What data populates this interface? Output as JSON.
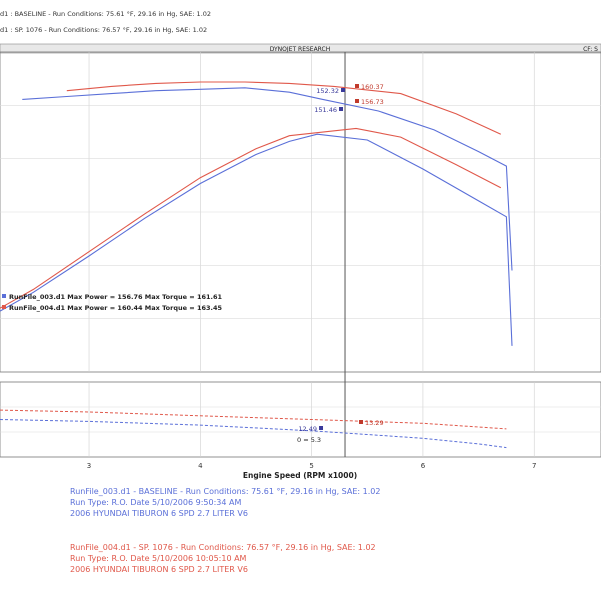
{
  "header": {
    "line1": "d1 : BASELINE  -  Run Conditions: 75.61 °F, 29.16 in Hg, SAE: 1.02",
    "line2": "d1 : SP. 1076  -  Run Conditions: 76.57 °F, 29.16 in Hg, SAE: 1.02",
    "title": "DYNOJET RESEARCH",
    "right": "CF: S"
  },
  "chart_data": {
    "type": "line",
    "xlabel": "Engine Speed (RPM x1000)",
    "x_ticks": [
      "3",
      "4",
      "5",
      "6",
      "7"
    ],
    "x_range": [
      2.2,
      7.6
    ],
    "top_range": [
      0,
      200
    ],
    "bottom_range": [
      0,
      40
    ],
    "series": [
      {
        "name": "RunFile_003.d1",
        "color": "#5a6fd8",
        "power": [
          [
            2.2,
            42
          ],
          [
            2.5,
            55
          ],
          [
            3.0,
            80
          ],
          [
            3.5,
            106
          ],
          [
            4.0,
            130
          ],
          [
            4.5,
            150
          ],
          [
            4.8,
            159
          ],
          [
            5.05,
            164
          ],
          [
            5.5,
            160
          ],
          [
            6.0,
            140
          ],
          [
            6.5,
            118
          ],
          [
            6.75,
            107
          ],
          [
            6.8,
            18
          ]
        ],
        "torque": [
          [
            2.4,
            188
          ],
          [
            2.8,
            190
          ],
          [
            3.2,
            192
          ],
          [
            3.6,
            194
          ],
          [
            4.0,
            195
          ],
          [
            4.4,
            196
          ],
          [
            4.8,
            193
          ],
          [
            5.1,
            188
          ],
          [
            5.6,
            180
          ],
          [
            6.1,
            167
          ],
          [
            6.5,
            152
          ],
          [
            6.75,
            142
          ],
          [
            6.8,
            70
          ]
        ],
        "hp_bottom": [
          [
            2.2,
            20
          ],
          [
            3.0,
            19
          ],
          [
            4.0,
            17
          ],
          [
            5.0,
            14
          ],
          [
            5.5,
            12
          ],
          [
            6.0,
            10
          ],
          [
            6.5,
            7
          ],
          [
            6.75,
            5
          ]
        ]
      },
      {
        "name": "RunFile_004.d1",
        "color": "#e0584a",
        "power": [
          [
            2.2,
            44
          ],
          [
            2.5,
            57
          ],
          [
            3.0,
            83
          ],
          [
            3.5,
            109
          ],
          [
            4.0,
            134
          ],
          [
            4.5,
            154
          ],
          [
            4.8,
            163
          ],
          [
            5.4,
            168
          ],
          [
            5.8,
            162
          ],
          [
            6.3,
            143
          ],
          [
            6.7,
            127
          ]
        ],
        "torque": [
          [
            2.8,
            194
          ],
          [
            3.2,
            197
          ],
          [
            3.6,
            199
          ],
          [
            4.0,
            200
          ],
          [
            4.4,
            200
          ],
          [
            4.8,
            199
          ],
          [
            5.2,
            197
          ],
          [
            5.8,
            192
          ],
          [
            6.3,
            178
          ],
          [
            6.7,
            164
          ]
        ],
        "hp_bottom": [
          [
            2.2,
            25
          ],
          [
            3.0,
            24
          ],
          [
            4.0,
            22
          ],
          [
            5.0,
            20
          ],
          [
            5.5,
            19
          ],
          [
            6.0,
            18
          ],
          [
            6.5,
            16
          ],
          [
            6.75,
            15
          ]
        ]
      }
    ],
    "annotations": {
      "blue_torque_peak": "152.32",
      "red_torque_peak": "160.37",
      "red_power_peak": "156.73",
      "blue_power_peak": "151.46",
      "red_bottom": "13.29",
      "blue_bottom": "12.49",
      "bottom_marker": "0 = 5.3"
    },
    "legend": [
      {
        "text": "RunFile_003.d1 Max Power = 156.76  Max Torque = 161.61",
        "color": "#5a6fd8"
      },
      {
        "text": "RunFile_004.d1 Max Power = 160.44  Max Torque = 163.45",
        "color": "#e0584a"
      }
    ]
  },
  "footer": {
    "blue": [
      "RunFile_003.d1 - BASELINE  -  Run Conditions: 75.61 °F, 29.16 in Hg, SAE: 1.02",
      "Run Type: R.O. Date 5/10/2006 9:50:34 AM",
      "2006 HYUNDAI TIBURON 6 SPD 2.7 LITER V6"
    ],
    "red": [
      "RunFile_004.d1 - SP. 1076  -  Run Conditions: 76.57 °F, 29.16 in Hg, SAE: 1.02",
      "Run Type: R.O. Date 5/10/2006 10:05:10 AM",
      "2006 HYUNDAI TIBURON 6 SPD 2.7 LITER V6"
    ]
  }
}
